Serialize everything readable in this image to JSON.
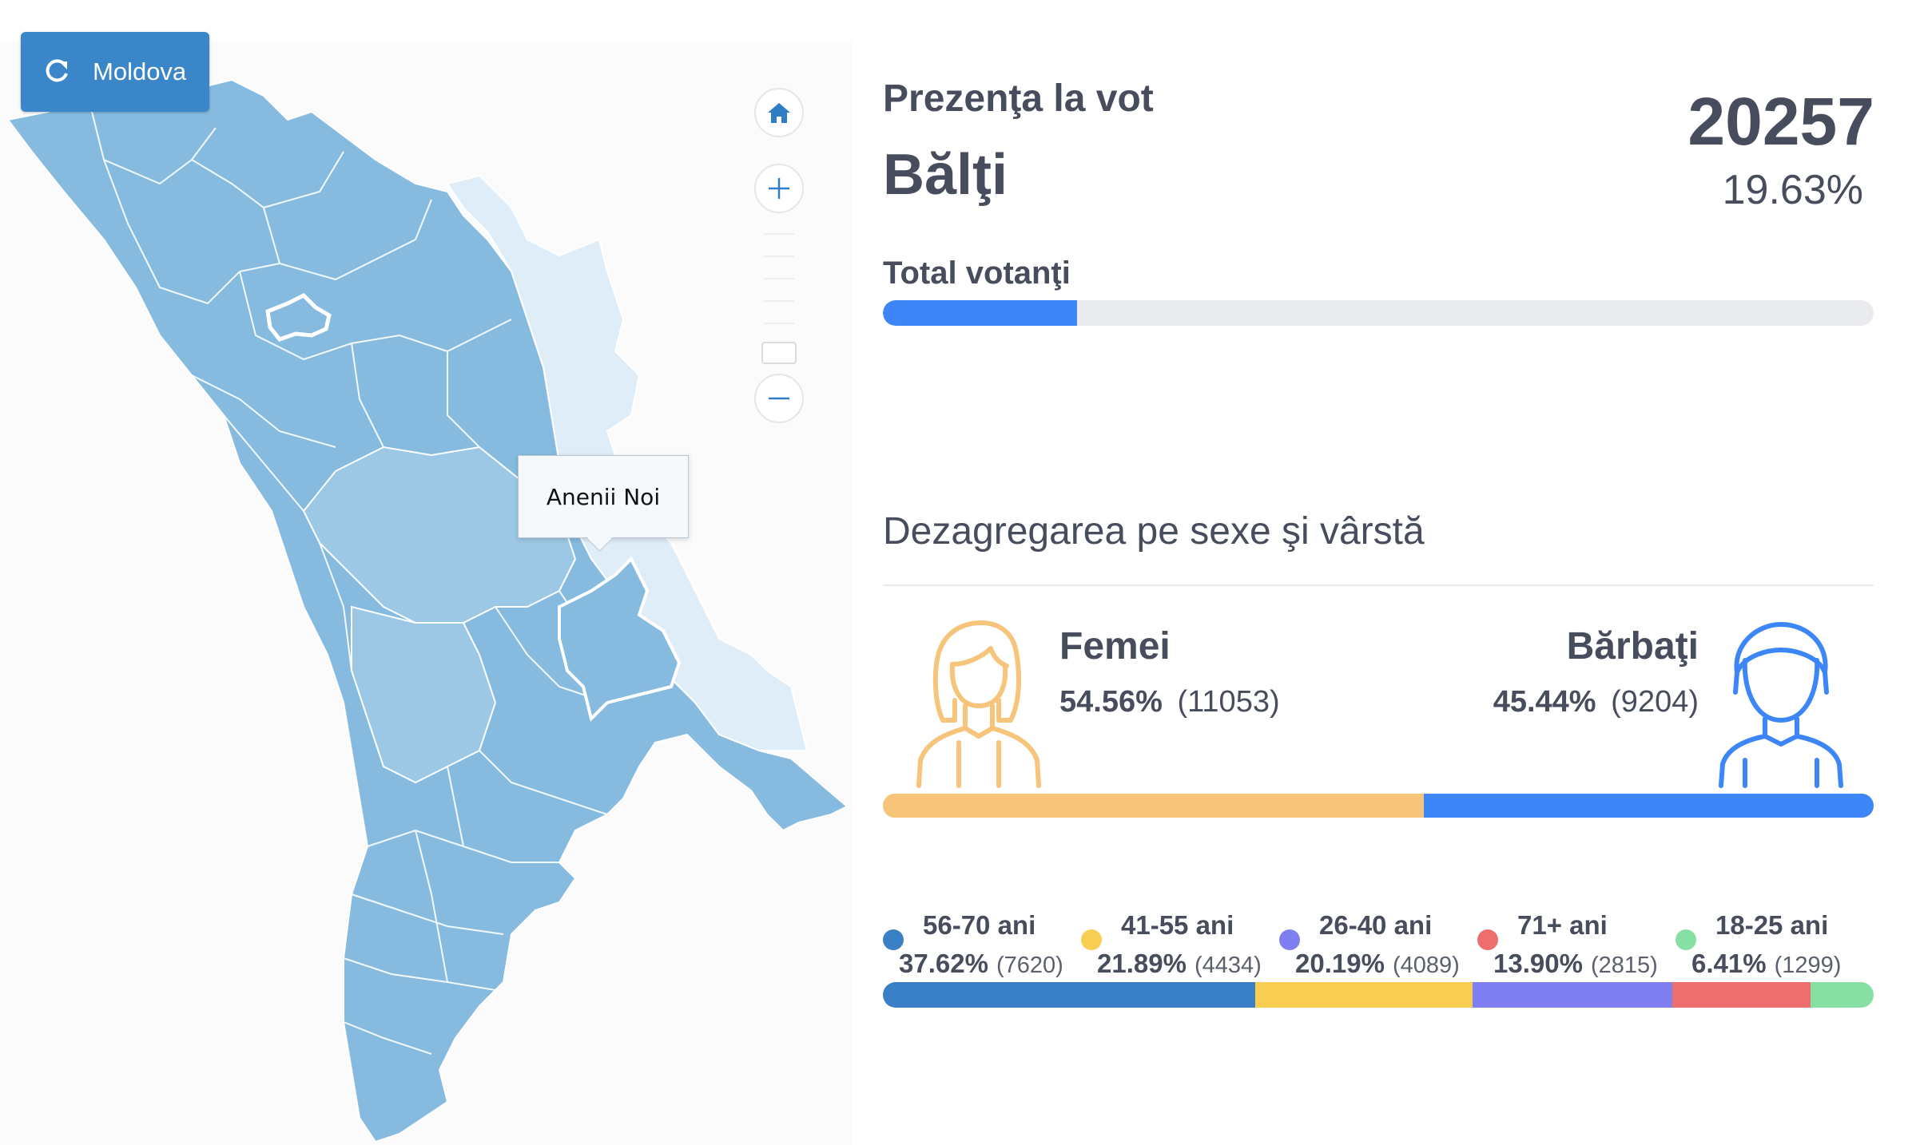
{
  "map": {
    "reset_label": "Moldova",
    "tooltip": "Anenii Noi"
  },
  "header": {
    "subtitle": "Prezenţa la vot",
    "title": "Bălţi",
    "total": "20257",
    "percent": "19.63%"
  },
  "turnout": {
    "label": "Total votanţi",
    "fraction": 0.1963
  },
  "section_title": "Dezagregarea pe sexe şi vârstă",
  "gender": {
    "female": {
      "label": "Femei",
      "pct": "54.56%",
      "count": "(11053)",
      "fraction": 0.5456,
      "color": "#f6c47a"
    },
    "male": {
      "label": "Bărbaţi",
      "pct": "45.44%",
      "count": "(9204)",
      "fraction": 0.4544,
      "color": "#3d86f7"
    }
  },
  "age_groups": [
    {
      "label": "56-70 ani",
      "pct": "37.62%",
      "count": "(7620)",
      "fraction": 0.3762,
      "color": "#3a80c6"
    },
    {
      "label": "41-55 ani",
      "pct": "21.89%",
      "count": "(4434)",
      "fraction": 0.2189,
      "color": "#f7cd52"
    },
    {
      "label": "26-40 ani",
      "pct": "20.19%",
      "count": "(4089)",
      "fraction": 0.2019,
      "color": "#7f7ff2"
    },
    {
      "label": "71+ ani",
      "pct": "13.90%",
      "count": "(2815)",
      "fraction": 0.139,
      "color": "#ee6e6e"
    },
    {
      "label": "18-25 ani",
      "pct": "6.41%",
      "count": "(1299)",
      "fraction": 0.0641,
      "color": "#86e0a4"
    }
  ]
}
